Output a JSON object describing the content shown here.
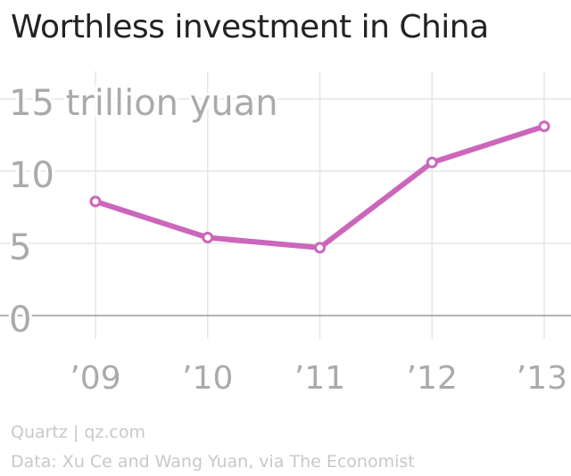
{
  "title": "Worthless investment in China",
  "source": "Quartz | qz.com",
  "credit": "Data: Xu Ce and Wang Yuan, via The Economist",
  "colors": {
    "line": "#cc66bb",
    "grid": "#e6e6e6",
    "baseline": "#999999",
    "tick_text": "#aaaaaa"
  },
  "chart_data": {
    "type": "line",
    "categories": [
      "’09",
      "’10",
      "’11",
      "’12",
      "’13"
    ],
    "series": [
      {
        "values": [
          7.9,
          5.4,
          4.7,
          10.6,
          13.1
        ]
      }
    ],
    "y_ticks": [
      "0",
      "5",
      "10",
      "15 trillion yuan"
    ],
    "y_tick_values": [
      0,
      5,
      10,
      15
    ],
    "ylim": [
      0,
      15
    ],
    "grid": true,
    "markers": "hollow-circle"
  }
}
